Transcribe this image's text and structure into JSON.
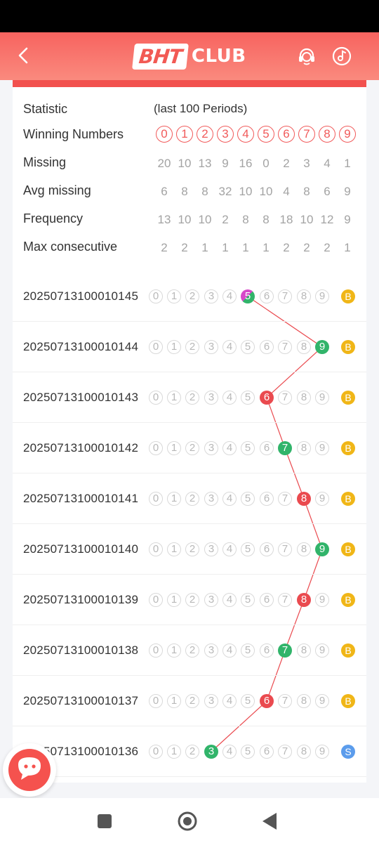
{
  "header": {
    "logo_main": "BHT",
    "logo_sub": "CLUB",
    "icons": [
      "chevron-left-icon",
      "headset-icon",
      "music-note-icon"
    ]
  },
  "statistics": {
    "title": "Statistic",
    "note": "(last 100 Periods)",
    "winning_label": "Winning Numbers",
    "winning_numbers": [
      "0",
      "1",
      "2",
      "3",
      "4",
      "5",
      "6",
      "7",
      "8",
      "9"
    ],
    "rows": [
      {
        "label": "Missing",
        "values": [
          "20",
          "10",
          "13",
          "9",
          "16",
          "0",
          "2",
          "3",
          "4",
          "1"
        ]
      },
      {
        "label": "Avg missing",
        "values": [
          "6",
          "8",
          "8",
          "32",
          "10",
          "10",
          "4",
          "8",
          "6",
          "9"
        ]
      },
      {
        "label": "Frequency",
        "values": [
          "13",
          "10",
          "10",
          "2",
          "8",
          "8",
          "18",
          "10",
          "12",
          "9"
        ]
      },
      {
        "label": "Max consecutive",
        "values": [
          "2",
          "2",
          "1",
          "1",
          "1",
          "1",
          "2",
          "2",
          "2",
          "1"
        ]
      }
    ]
  },
  "periods": [
    {
      "id": "20250713100010145",
      "winner": 5,
      "color": "mix",
      "size": "B"
    },
    {
      "id": "20250713100010144",
      "winner": 9,
      "color": "green",
      "size": "B"
    },
    {
      "id": "20250713100010143",
      "winner": 6,
      "color": "red",
      "size": "B"
    },
    {
      "id": "20250713100010142",
      "winner": 7,
      "color": "green",
      "size": "B"
    },
    {
      "id": "20250713100010141",
      "winner": 8,
      "color": "red",
      "size": "B"
    },
    {
      "id": "20250713100010140",
      "winner": 9,
      "color": "green",
      "size": "B"
    },
    {
      "id": "20250713100010139",
      "winner": 8,
      "color": "red",
      "size": "B"
    },
    {
      "id": "20250713100010138",
      "winner": 7,
      "color": "green",
      "size": "B"
    },
    {
      "id": "20250713100010137",
      "winner": 6,
      "color": "red",
      "size": "B"
    },
    {
      "id": "20250713100010136",
      "winner": 3,
      "color": "green",
      "size": "S"
    }
  ],
  "colors": {
    "header_top": "#f7635f",
    "accent_red": "#ea4a4f",
    "green": "#31b46a",
    "violet": "#d747c9",
    "big": "#f0b617",
    "small": "#5b9cec"
  }
}
